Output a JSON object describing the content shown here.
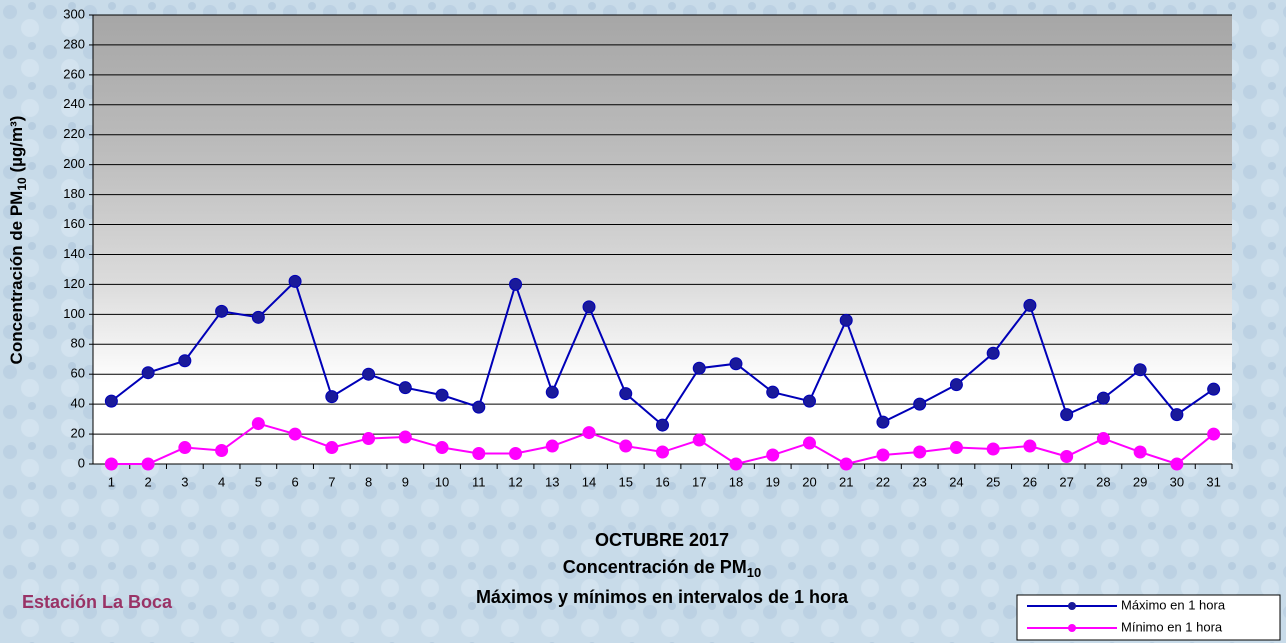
{
  "chart_data": {
    "type": "line",
    "title": "OCTUBRE 2017",
    "subtitle": [
      "Concentración de PM",
      "10"
    ],
    "subtitle2": "Máximos y mínimos en intervalos de 1 hora",
    "y_label": [
      "Concentración de PM",
      "10",
      " (µg/m³)"
    ],
    "annotation": "Estación La Boca",
    "categories": [
      "1",
      "2",
      "3",
      "4",
      "5",
      "6",
      "7",
      "8",
      "9",
      "10",
      "11",
      "12",
      "13",
      "14",
      "15",
      "16",
      "17",
      "18",
      "19",
      "20",
      "21",
      "22",
      "23",
      "24",
      "25",
      "26",
      "27",
      "28",
      "29",
      "30",
      "31"
    ],
    "series": [
      {
        "name": "Máximo en 1 hora",
        "color": "#0000b8",
        "marker": "#1a1a9a",
        "values": [
          42,
          61,
          69,
          102,
          98,
          122,
          45,
          60,
          51,
          46,
          38,
          120,
          48,
          105,
          47,
          26,
          64,
          67,
          48,
          42,
          96,
          28,
          40,
          53,
          74,
          106,
          33,
          44,
          63,
          33,
          50
        ]
      },
      {
        "name": "Mínimo en 1 hora",
        "color": "#ff00ff",
        "marker": "#ff00ff",
        "values": [
          0,
          0,
          11,
          9,
          27,
          20,
          11,
          17,
          18,
          11,
          7,
          7,
          12,
          21,
          12,
          8,
          16,
          0,
          6,
          14,
          0,
          6,
          8,
          11,
          10,
          12,
          5,
          17,
          8,
          0,
          20
        ]
      }
    ],
    "ylim": [
      0,
      300
    ],
    "yticks": [
      0,
      20,
      40,
      60,
      80,
      100,
      120,
      140,
      160,
      180,
      200,
      220,
      240,
      260,
      280,
      300
    ],
    "grid": true,
    "legend": "bottom-right"
  }
}
